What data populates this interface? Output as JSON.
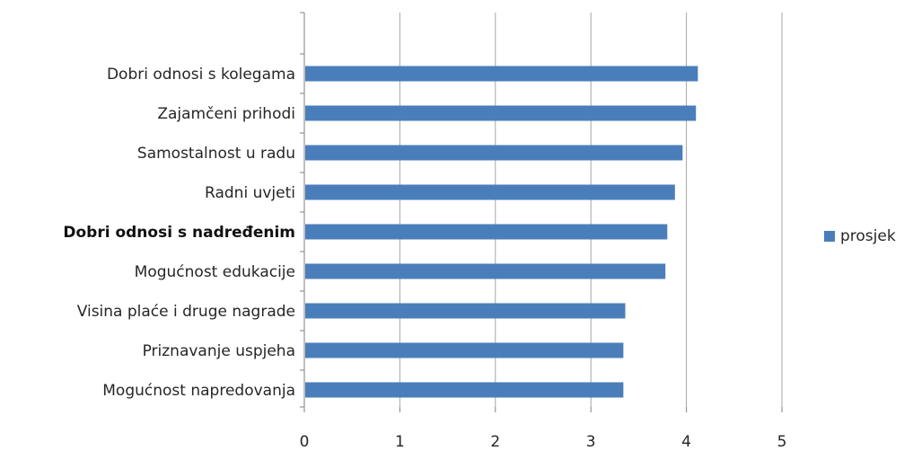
{
  "chart_data": {
    "type": "bar",
    "orientation": "horizontal",
    "categories": [
      "Dobri odnosi s kolegama",
      "Zajamčeni prihodi",
      "Samostalnost u radu",
      "Radni uvjeti",
      "Dobri odnosi s nadređenim",
      "Mogućnost edukacije",
      "Visina plaće i druge nagrade",
      "Priznavanje uspjeha",
      "Mogućnost napredovanja"
    ],
    "emphasized_category": "Dobri odnosi s nadređenim",
    "series": [
      {
        "name": "prosjek",
        "color": "#4a7ebb",
        "values": [
          4.12,
          4.1,
          3.96,
          3.88,
          3.8,
          3.78,
          3.36,
          3.34,
          3.34
        ]
      }
    ],
    "xlim": [
      0,
      5
    ],
    "xticks": [
      "0",
      "1",
      "2",
      "3",
      "4",
      "5"
    ],
    "grid": "vertical",
    "legend_position": "right",
    "title": "",
    "xlabel": "",
    "ylabel": ""
  }
}
